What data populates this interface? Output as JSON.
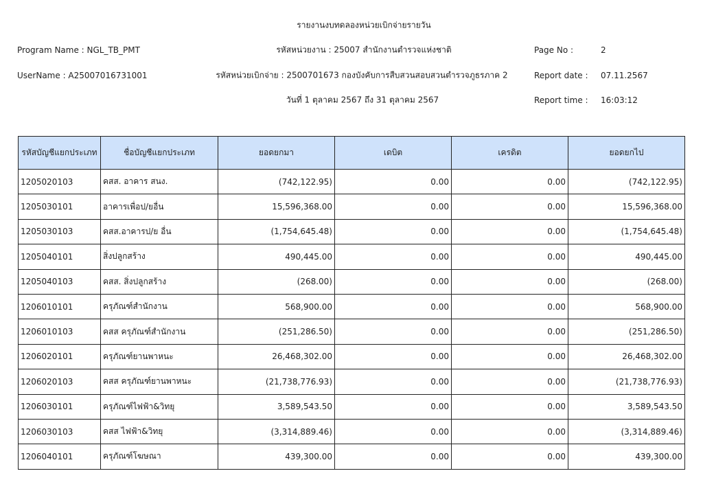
{
  "header": {
    "title": "รายงานงบทดลองหน่วยเบิกจ่ายรายวัน",
    "program_name": "Program Name : NGL_TB_PMT",
    "agency": "รหัสหน่วยงาน : 25007 สำนักงานตำรวจแห่งชาติ",
    "page_no_label": "Page No :",
    "page_no": "2",
    "user_name": "UserName : A25007016731001",
    "disbursing_unit": "รหัสหน่วยเบิกจ่าย : 2500701673 กองบังคับการสืบสวนสอบสวนตำรวจภูธรภาค 2",
    "report_date_label": "Report date :",
    "report_date": "07.11.2567",
    "period": "วันที่ 1 ตุลาคม 2567 ถึง 31 ตุลาคม 2567",
    "report_time_label": "Report time :",
    "report_time": "16:03:12"
  },
  "table": {
    "columns": [
      "รหัสบัญชีแยกประเภท",
      "ชื่อบัญชีแยกประเภท",
      "ยอดยกมา",
      "เดบิต",
      "เครดิต",
      "ยอดยกไป"
    ],
    "rows": [
      [
        "1205020103",
        "คสส. อาคาร สนง.",
        "(742,122.95)",
        "0.00",
        "0.00",
        "(742,122.95)"
      ],
      [
        "1205030101",
        "อาคารเพื่อป/ยอื่น",
        "15,596,368.00",
        "0.00",
        "0.00",
        "15,596,368.00"
      ],
      [
        "1205030103",
        "คสส.อาคารป/ย อื่น",
        "(1,754,645.48)",
        "0.00",
        "0.00",
        "(1,754,645.48)"
      ],
      [
        "1205040101",
        "สิ่งปลูกสร้าง",
        "490,445.00",
        "0.00",
        "0.00",
        "490,445.00"
      ],
      [
        "1205040103",
        "คสส. สิ่งปลูกสร้าง",
        "(268.00)",
        "0.00",
        "0.00",
        "(268.00)"
      ],
      [
        "1206010101",
        "ครุภัณฑ์สำนักงาน",
        "568,900.00",
        "0.00",
        "0.00",
        "568,900.00"
      ],
      [
        "1206010103",
        "คสส ครุภัณฑ์สำนักงาน",
        "(251,286.50)",
        "0.00",
        "0.00",
        "(251,286.50)"
      ],
      [
        "1206020101",
        "ครุภัณฑ์ยานพาหนะ",
        "26,468,302.00",
        "0.00",
        "0.00",
        "26,468,302.00"
      ],
      [
        "1206020103",
        "คสส ครุภัณฑ์ยานพาหนะ",
        "(21,738,776.93)",
        "0.00",
        "0.00",
        "(21,738,776.93)"
      ],
      [
        "1206030101",
        "ครุภัณฑ์ไฟฟ้า&วิทยุ",
        "3,589,543.50",
        "0.00",
        "0.00",
        "3,589,543.50"
      ],
      [
        "1206030103",
        "คสส ไฟฟ้า&วิทยุ",
        "(3,314,889.46)",
        "0.00",
        "0.00",
        "(3,314,889.46)"
      ],
      [
        "1206040101",
        "ครุภัณฑ์โฆษณา",
        "439,300.00",
        "0.00",
        "0.00",
        "439,300.00"
      ]
    ]
  }
}
